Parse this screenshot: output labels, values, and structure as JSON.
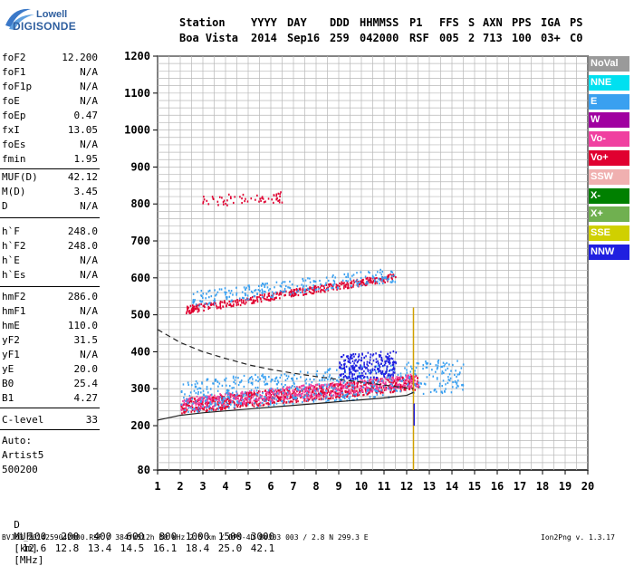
{
  "logo": {
    "line1": "Lowell",
    "line2": "DIGISONDE"
  },
  "header": {
    "labels": [
      "Station",
      "YYYY",
      "DAY",
      "DDD",
      "HHMMSS",
      "P1",
      "FFS",
      "S",
      "AXN",
      "PPS",
      "IGA",
      "PS"
    ],
    "values": [
      "Boa Vista",
      "2014",
      "Sep16",
      "259",
      "042000",
      "RSF",
      "005",
      "2",
      "713",
      "100",
      "03+",
      "C0"
    ]
  },
  "params": [
    {
      "name": "foF2",
      "value": "12.200"
    },
    {
      "name": "foF1",
      "value": "N/A"
    },
    {
      "name": "foF1p",
      "value": "N/A"
    },
    {
      "name": "foE",
      "value": "N/A"
    },
    {
      "name": "foEp",
      "value": "0.47"
    },
    {
      "name": "fxI",
      "value": "13.05"
    },
    {
      "name": "foEs",
      "value": "N/A"
    },
    {
      "name": "fmin",
      "value": "1.95"
    },
    {
      "name": "MUF(D)",
      "value": "42.12"
    },
    {
      "name": "M(D)",
      "value": "3.45"
    },
    {
      "name": "D",
      "value": "N/A"
    },
    {
      "name": "h`F",
      "value": "248.0"
    },
    {
      "name": "h`F2",
      "value": "248.0"
    },
    {
      "name": "h`E",
      "value": "N/A"
    },
    {
      "name": "h`Es",
      "value": "N/A"
    },
    {
      "name": "hmF2",
      "value": "286.0"
    },
    {
      "name": "hmF1",
      "value": "N/A"
    },
    {
      "name": "hmE",
      "value": "110.0"
    },
    {
      "name": "yF2",
      "value": "31.5"
    },
    {
      "name": "yF1",
      "value": "N/A"
    },
    {
      "name": "yE",
      "value": "20.0"
    },
    {
      "name": "B0",
      "value": "25.4"
    },
    {
      "name": "B1",
      "value": "4.27"
    },
    {
      "name": "C-level",
      "value": "33"
    }
  ],
  "auto": {
    "line1": "Auto:",
    "line2": "Artist5",
    "line3": "500200"
  },
  "legend": [
    {
      "label": "NoVal",
      "color": "#9a9a9a"
    },
    {
      "label": "NNE",
      "color": "#00e0f0"
    },
    {
      "label": "E",
      "color": "#3aa0f0"
    },
    {
      "label": "W",
      "color": "#a000a0"
    },
    {
      "label": "Vo-",
      "color": "#f040a0"
    },
    {
      "label": "Vo+",
      "color": "#e00030"
    },
    {
      "label": "SSW",
      "color": "#f0b0b0"
    },
    {
      "label": "X-",
      "color": "#008000"
    },
    {
      "label": "X+",
      "color": "#70b050"
    },
    {
      "label": "SSE",
      "color": "#d0d000"
    },
    {
      "label": "NNW",
      "color": "#2020e0"
    }
  ],
  "bottom": {
    "d_label": "D",
    "d_values": [
      "100",
      "200",
      "400",
      "600",
      "800",
      "1000",
      "1500",
      "3000"
    ],
    "d_unit": "[km]",
    "muf_label": "MUF",
    "muf_values": [
      "12.6",
      "12.8",
      "13.4",
      "14.5",
      "16.1",
      "18.4",
      "25.0",
      "42.1"
    ],
    "muf_unit": "[MHz]"
  },
  "footer": {
    "left": "BVJ03_2014259042000.RSF / 384fx512h 50 kHz 2.5 km / DPS-4D BVJ03 003 / 2.8 N 299.3 E",
    "right": "Ion2Png v. 1.3.17"
  },
  "chart_data": {
    "type": "scatter",
    "xlim": [
      1,
      20
    ],
    "ylim": [
      80,
      1200
    ],
    "x_ticks": [
      "1",
      "2",
      "3",
      "4",
      "5",
      "6",
      "7",
      "8",
      "9",
      "10",
      "11",
      "12",
      "13",
      "14",
      "15",
      "16",
      "17",
      "18",
      "19",
      "20"
    ],
    "y_ticks": [
      "80",
      "200",
      "300",
      "400",
      "500",
      "600",
      "700",
      "800",
      "900",
      "1000",
      "1100",
      "1200"
    ],
    "grid": true,
    "curves": [
      {
        "style": "solid",
        "x": [
          1.0,
          2.0,
          3.0,
          4.0,
          5.0,
          6.0,
          7.0,
          8.0,
          9.0,
          10.0,
          11.0,
          12.0,
          12.3
        ],
        "y": [
          215,
          228,
          235,
          240,
          245,
          250,
          255,
          260,
          265,
          270,
          275,
          282,
          290
        ]
      },
      {
        "style": "dashed",
        "x": [
          1.0,
          2.0,
          3.0,
          4.0,
          5.0,
          6.0,
          7.0,
          8.0,
          9.0,
          10.0,
          11.0,
          12.0,
          12.3
        ],
        "y": [
          460,
          425,
          400,
          382,
          365,
          352,
          342,
          333,
          325,
          318,
          310,
          302,
          300
        ]
      }
    ],
    "point_clusters": [
      {
        "color": "#e00030",
        "x_range": [
          2.0,
          12.5
        ],
        "y_start": [
          2.0,
          255
        ],
        "y_end": [
          12.5,
          320
        ],
        "spread": 20,
        "count": 900
      },
      {
        "color": "#f040a0",
        "x_range": [
          2.0,
          12.5
        ],
        "y_start": [
          2.0,
          260
        ],
        "y_end": [
          12.5,
          325
        ],
        "spread": 18,
        "count": 500
      },
      {
        "color": "#3aa0f0",
        "x_range": [
          2.0,
          14.5
        ],
        "y_start": [
          2.0,
          280
        ],
        "y_end": [
          14.5,
          340
        ],
        "spread": 45,
        "count": 600
      },
      {
        "color": "#2020e0",
        "x_range": [
          9.0,
          11.5
        ],
        "y_start": [
          9.0,
          360
        ],
        "y_end": [
          11.5,
          370
        ],
        "spread": 35,
        "count": 250
      },
      {
        "color": "#e00030",
        "x_range": [
          2.2,
          11.5
        ],
        "y_start": [
          2.2,
          515
        ],
        "y_end": [
          11.5,
          605
        ],
        "spread": 10,
        "count": 400
      },
      {
        "color": "#3aa0f0",
        "x_range": [
          2.5,
          11.5
        ],
        "y_start": [
          2.5,
          545
        ],
        "y_end": [
          11.5,
          610
        ],
        "spread": 20,
        "count": 250
      },
      {
        "color": "#e00030",
        "x_range": [
          2.9,
          6.5
        ],
        "y_start": [
          2.9,
          810
        ],
        "y_end": [
          6.5,
          820
        ],
        "spread": 15,
        "count": 60
      }
    ]
  }
}
